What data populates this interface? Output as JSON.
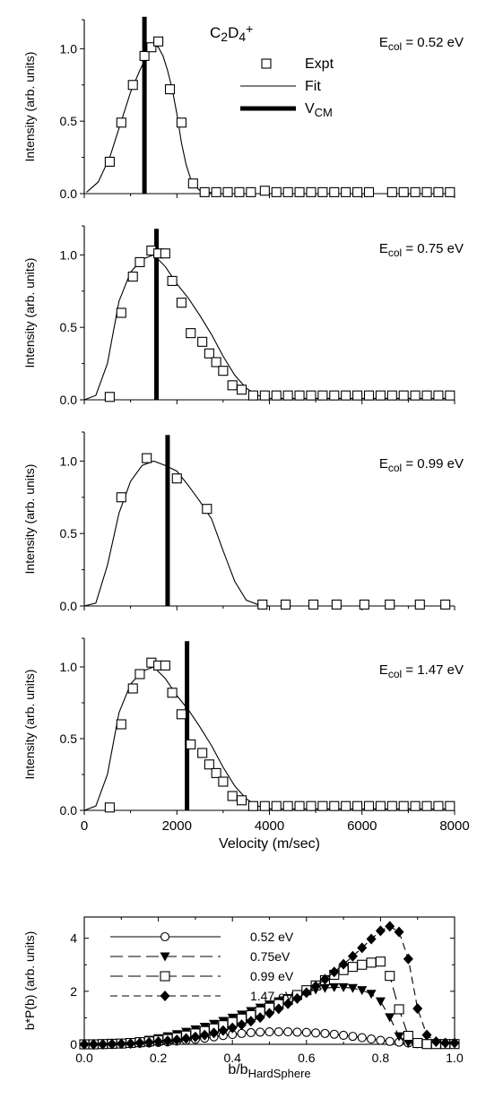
{
  "chart_data": [
    {
      "type": "scatter",
      "panel_label": "C₂D₄⁺",
      "annotation": "E_col = 0.52 eV",
      "ylabel": "Intensity (arb. units)",
      "xlabel": "",
      "xlim": [
        0,
        8000
      ],
      "ylim": [
        0,
        1.2
      ],
      "yticks": [
        "0.0",
        "0.5",
        "1.0"
      ],
      "legend": {
        "position": "top-right",
        "entries": [
          {
            "name": "Expt",
            "marker": "square"
          },
          {
            "name": "Fit",
            "marker": "thin-line"
          },
          {
            "name": "V_CM",
            "marker": "thick-line"
          }
        ]
      },
      "vcm": 1300,
      "expt": {
        "x": [
          550,
          800,
          1050,
          1300,
          1450,
          1600,
          1850,
          2100,
          2350,
          2600,
          2850,
          3100,
          3350,
          3600,
          3900,
          4150,
          4400,
          4650,
          4900,
          5150,
          5400,
          5650,
          5900,
          6150,
          6650,
          6900,
          7150,
          7400,
          7650,
          7900
        ],
        "y": [
          0.22,
          0.49,
          0.75,
          0.95,
          1.01,
          1.05,
          0.72,
          0.49,
          0.07,
          0.01,
          0.01,
          0.01,
          0.01,
          0.01,
          0.02,
          0.01,
          0.01,
          0.01,
          0.01,
          0.01,
          0.01,
          0.01,
          0.01,
          0.01,
          0.01,
          0.01,
          0.01,
          0.01,
          0.01,
          0.01
        ]
      },
      "fit": {
        "x": [
          50,
          300,
          550,
          800,
          1000,
          1200,
          1350,
          1500,
          1600,
          1700,
          1800,
          1900,
          2000,
          2100,
          2200,
          2300,
          2400,
          2500,
          2650,
          3000,
          8000
        ],
        "y": [
          0.01,
          0.08,
          0.25,
          0.5,
          0.7,
          0.85,
          0.95,
          1.03,
          1.01,
          0.95,
          0.85,
          0.72,
          0.55,
          0.35,
          0.2,
          0.1,
          0.05,
          0.02,
          0.01,
          0.0,
          0.0
        ]
      }
    },
    {
      "type": "scatter",
      "annotation": "E_col = 0.75 eV",
      "ylabel": "Intensity (arb. units)",
      "xlim": [
        0,
        8000
      ],
      "ylim": [
        0,
        1.2
      ],
      "yticks": [
        "0.0",
        "0.5",
        "1.0"
      ],
      "vcm": 1560,
      "expt": {
        "x": [
          550,
          800,
          1050,
          1200,
          1450,
          1600,
          1750,
          1900,
          2100,
          2300,
          2550,
          2700,
          2850,
          3000,
          3200,
          3400,
          3650,
          3900,
          4150,
          4400,
          4650,
          4900,
          5150,
          5400,
          5650,
          5900,
          6150,
          6400,
          6650,
          6900,
          7150,
          7400,
          7650,
          7900
        ],
        "y": [
          0.02,
          0.6,
          0.85,
          0.95,
          1.03,
          1.01,
          1.01,
          0.82,
          0.67,
          0.46,
          0.4,
          0.32,
          0.26,
          0.2,
          0.1,
          0.07,
          0.03,
          0.03,
          0.03,
          0.03,
          0.03,
          0.03,
          0.03,
          0.03,
          0.03,
          0.03,
          0.03,
          0.03,
          0.03,
          0.03,
          0.03,
          0.03,
          0.03,
          0.03
        ]
      },
      "fit": {
        "x": [
          0,
          250,
          500,
          750,
          1000,
          1250,
          1500,
          1750,
          2000,
          2250,
          2500,
          2750,
          3000,
          3250,
          3500,
          3750,
          4000,
          4500,
          8000
        ],
        "y": [
          0.0,
          0.03,
          0.25,
          0.68,
          0.88,
          0.97,
          1.0,
          0.92,
          0.8,
          0.7,
          0.58,
          0.45,
          0.3,
          0.17,
          0.08,
          0.03,
          0.01,
          0.01,
          0.01
        ]
      }
    },
    {
      "type": "scatter",
      "annotation": "E_col = 0.99 eV",
      "ylabel": "Intensity (arb. units)",
      "xlim": [
        0,
        8000
      ],
      "ylim": [
        0,
        1.2
      ],
      "yticks": [
        "0.0",
        "0.5",
        "1.0"
      ],
      "vcm": 1800,
      "expt": {
        "x": [
          800,
          1350,
          2000,
          2650,
          3850,
          4350,
          4950,
          5450,
          6050,
          6600,
          7250,
          7800
        ],
        "y": [
          0.75,
          1.02,
          0.88,
          0.67,
          0.01,
          0.01,
          0.01,
          0.01,
          0.01,
          0.01,
          0.01,
          0.01
        ]
      },
      "fit": {
        "x": [
          0,
          250,
          500,
          750,
          1000,
          1250,
          1500,
          1750,
          2000,
          2250,
          2500,
          2750,
          3000,
          3250,
          3500,
          3750,
          4000,
          8000
        ],
        "y": [
          0.0,
          0.02,
          0.28,
          0.64,
          0.86,
          0.97,
          1.0,
          0.97,
          0.93,
          0.83,
          0.72,
          0.6,
          0.38,
          0.17,
          0.04,
          0.01,
          0.0,
          0.0
        ]
      }
    },
    {
      "type": "scatter",
      "annotation": "E_col = 1.47 eV",
      "ylabel": "Intensity (arb. units)",
      "xlabel": "Velocity (m/sec)",
      "xlim": [
        0,
        8000
      ],
      "ylim": [
        0,
        1.2
      ],
      "xticks": [
        "0",
        "2000",
        "4000",
        "6000",
        "8000"
      ],
      "yticks": [
        "0.0",
        "0.5",
        "1.0"
      ],
      "vcm": 2220,
      "expt": {
        "x": [
          550,
          800,
          1050,
          1200,
          1450,
          1600,
          1750,
          1900,
          2100,
          2300,
          2550,
          2700,
          2850,
          3000,
          3200,
          3400,
          3650,
          3900,
          4150,
          4400,
          4650,
          4900,
          5150,
          5400,
          5650,
          5900,
          6150,
          6400,
          6650,
          6900,
          7150,
          7400,
          7650,
          7900
        ],
        "y": [
          0.02,
          0.6,
          0.85,
          0.95,
          1.03,
          1.01,
          1.01,
          0.82,
          0.67,
          0.46,
          0.4,
          0.32,
          0.26,
          0.2,
          0.1,
          0.07,
          0.03,
          0.03,
          0.03,
          0.03,
          0.03,
          0.03,
          0.03,
          0.03,
          0.03,
          0.03,
          0.03,
          0.03,
          0.03,
          0.03,
          0.03,
          0.03,
          0.03,
          0.03
        ]
      },
      "fit": {
        "x": [
          0,
          250,
          500,
          750,
          1000,
          1250,
          1500,
          1750,
          2000,
          2250,
          2500,
          2750,
          3000,
          3250,
          3500,
          3750,
          4000,
          4500,
          8000
        ],
        "y": [
          0.0,
          0.03,
          0.25,
          0.68,
          0.88,
          0.97,
          1.0,
          0.92,
          0.8,
          0.7,
          0.58,
          0.45,
          0.3,
          0.17,
          0.08,
          0.03,
          0.01,
          0.01,
          0.01
        ]
      }
    },
    {
      "type": "line",
      "xlabel": "b/b",
      "xlabel_sub": "HardSphere",
      "ylabel": "b*P(b) (arb. units)",
      "xlim": [
        0,
        1.0
      ],
      "ylim": [
        0,
        4.8
      ],
      "xticks": [
        "0.0",
        "0.2",
        "0.4",
        "0.6",
        "0.8",
        "1.0"
      ],
      "yticks": [
        "0",
        "2",
        "4"
      ],
      "legend_position": "top-left",
      "series": [
        {
          "name": "0.52 eV",
          "marker": "circle-open",
          "dash": "solid",
          "x": [
            0.0,
            0.025,
            0.05,
            0.075,
            0.1,
            0.125,
            0.15,
            0.175,
            0.2,
            0.225,
            0.25,
            0.275,
            0.3,
            0.325,
            0.35,
            0.375,
            0.4,
            0.425,
            0.45,
            0.475,
            0.5,
            0.525,
            0.55,
            0.575,
            0.6,
            0.625,
            0.65,
            0.675,
            0.7,
            0.725,
            0.75,
            0.775,
            0.8,
            0.825,
            0.85,
            0.875,
            0.9,
            0.925,
            0.95,
            0.975,
            1.0
          ],
          "y": [
            0.0,
            0.0,
            0.01,
            0.01,
            0.02,
            0.03,
            0.04,
            0.05,
            0.07,
            0.09,
            0.12,
            0.15,
            0.19,
            0.23,
            0.28,
            0.33,
            0.37,
            0.41,
            0.44,
            0.46,
            0.47,
            0.47,
            0.47,
            0.46,
            0.45,
            0.43,
            0.41,
            0.38,
            0.34,
            0.3,
            0.25,
            0.2,
            0.15,
            0.11,
            0.08,
            0.05,
            0.03,
            0.02,
            0.02,
            0.02,
            0.02
          ]
        },
        {
          "name": "0.75eV",
          "marker": "triangle-down",
          "dash": "long-dash",
          "x": [
            0.0,
            0.025,
            0.05,
            0.075,
            0.1,
            0.125,
            0.15,
            0.175,
            0.2,
            0.225,
            0.25,
            0.275,
            0.3,
            0.325,
            0.35,
            0.375,
            0.4,
            0.425,
            0.45,
            0.475,
            0.5,
            0.525,
            0.55,
            0.575,
            0.6,
            0.625,
            0.65,
            0.675,
            0.7,
            0.725,
            0.75,
            0.775,
            0.8,
            0.825,
            0.85,
            0.875,
            0.9,
            0.925,
            0.95,
            0.975,
            1.0
          ],
          "y": [
            0.0,
            0.0,
            0.02,
            0.03,
            0.05,
            0.08,
            0.12,
            0.17,
            0.23,
            0.3,
            0.38,
            0.47,
            0.56,
            0.66,
            0.77,
            0.88,
            1.0,
            1.12,
            1.25,
            1.38,
            1.5,
            1.62,
            1.74,
            1.86,
            1.97,
            2.06,
            2.12,
            2.15,
            2.15,
            2.12,
            2.04,
            1.9,
            1.62,
            1.02,
            0.3,
            0.06,
            0.02,
            0.01,
            0.01,
            0.01,
            0.01
          ]
        },
        {
          "name": "0.99 eV",
          "marker": "square-open",
          "dash": "long-dash",
          "x": [
            0.0,
            0.025,
            0.05,
            0.075,
            0.1,
            0.125,
            0.15,
            0.175,
            0.2,
            0.225,
            0.25,
            0.275,
            0.3,
            0.325,
            0.35,
            0.375,
            0.4,
            0.425,
            0.45,
            0.475,
            0.5,
            0.525,
            0.55,
            0.575,
            0.6,
            0.625,
            0.65,
            0.675,
            0.7,
            0.725,
            0.75,
            0.775,
            0.8,
            0.825,
            0.85,
            0.875,
            0.9,
            0.925,
            0.95,
            0.975,
            1.0
          ],
          "y": [
            0.0,
            0.0,
            0.01,
            0.02,
            0.03,
            0.05,
            0.08,
            0.11,
            0.15,
            0.2,
            0.26,
            0.33,
            0.41,
            0.5,
            0.6,
            0.72,
            0.84,
            0.97,
            1.1,
            1.24,
            1.38,
            1.52,
            1.68,
            1.86,
            2.04,
            2.22,
            2.42,
            2.62,
            2.8,
            2.92,
            3.0,
            3.08,
            3.12,
            2.58,
            1.32,
            0.32,
            0.05,
            0.01,
            0.01,
            0.01,
            0.01
          ]
        },
        {
          "name": "1.47 eV",
          "marker": "diamond",
          "dash": "dash",
          "x": [
            0.0,
            0.025,
            0.05,
            0.075,
            0.1,
            0.125,
            0.15,
            0.175,
            0.2,
            0.225,
            0.25,
            0.275,
            0.3,
            0.325,
            0.35,
            0.375,
            0.4,
            0.425,
            0.45,
            0.475,
            0.5,
            0.525,
            0.55,
            0.575,
            0.6,
            0.625,
            0.65,
            0.675,
            0.7,
            0.725,
            0.75,
            0.775,
            0.8,
            0.825,
            0.85,
            0.875,
            0.9,
            0.925,
            0.95,
            0.975,
            1.0
          ],
          "y": [
            0.0,
            0.0,
            0.0,
            0.01,
            0.02,
            0.03,
            0.05,
            0.07,
            0.1,
            0.13,
            0.17,
            0.22,
            0.28,
            0.35,
            0.43,
            0.52,
            0.62,
            0.74,
            0.87,
            1.01,
            1.17,
            1.34,
            1.53,
            1.73,
            1.95,
            2.19,
            2.45,
            2.73,
            3.02,
            3.32,
            3.64,
            3.97,
            4.28,
            4.45,
            4.24,
            3.22,
            1.35,
            0.35,
            0.1,
            0.05,
            0.05
          ]
        }
      ]
    }
  ]
}
